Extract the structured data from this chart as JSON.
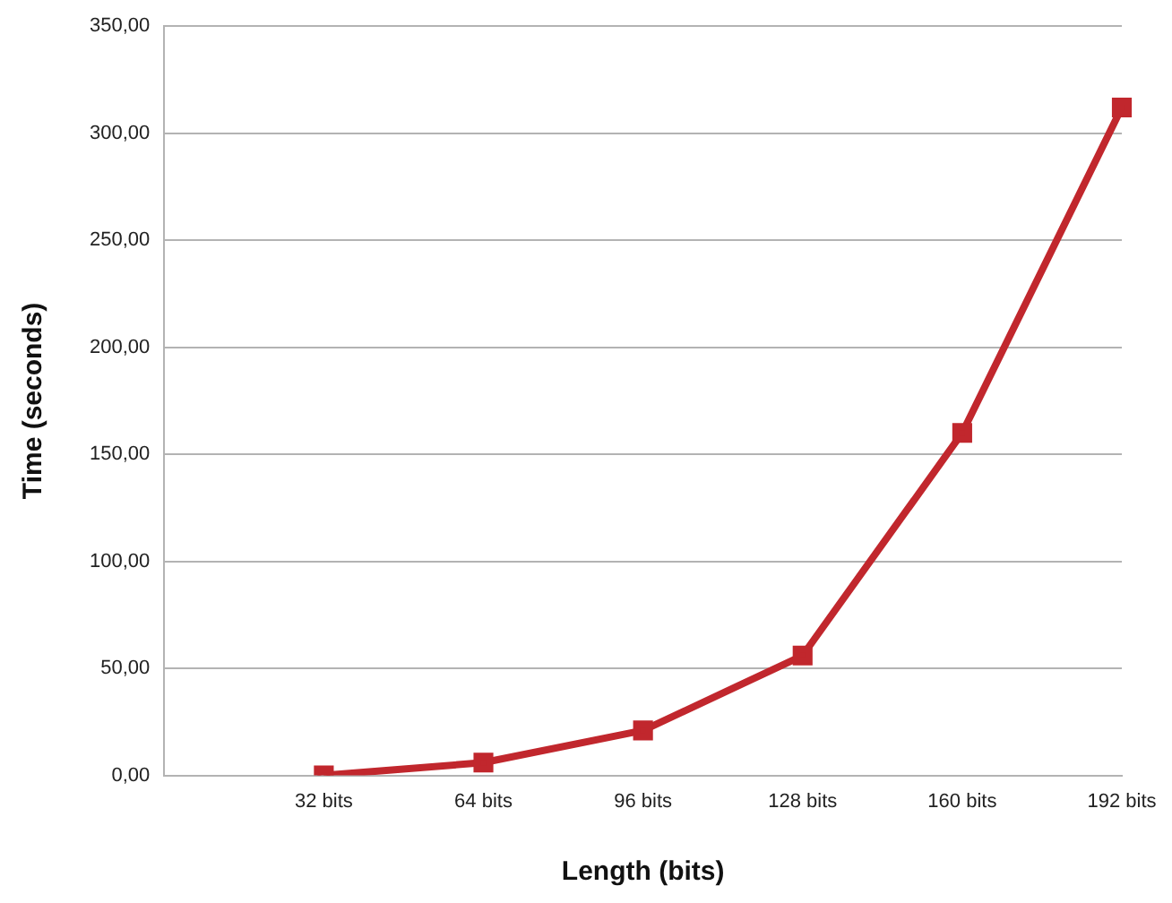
{
  "chart_data": {
    "type": "line",
    "xlabel": "Length (bits)",
    "ylabel": "Time (seconds)",
    "categories": [
      null,
      "32 bits",
      "64 bits",
      "96 bits",
      "128 bits",
      "160 bits",
      "192 bits"
    ],
    "series": [
      {
        "color": "#c1272d",
        "values": [
          null,
          0,
          6,
          21,
          56,
          160,
          312
        ]
      }
    ],
    "ylim": [
      0,
      350
    ],
    "yticks": [
      {
        "value": 0,
        "label": "0,00"
      },
      {
        "value": 50,
        "label": "50,00"
      },
      {
        "value": 100,
        "label": "100,00"
      },
      {
        "value": 150,
        "label": "150,00"
      },
      {
        "value": 200,
        "label": "200,00"
      },
      {
        "value": 250,
        "label": "250,00"
      },
      {
        "value": 300,
        "label": "300,00"
      },
      {
        "value": 350,
        "label": "350,00"
      }
    ],
    "grid": "y",
    "legend": false,
    "marker": "square",
    "line_style": "solid"
  }
}
